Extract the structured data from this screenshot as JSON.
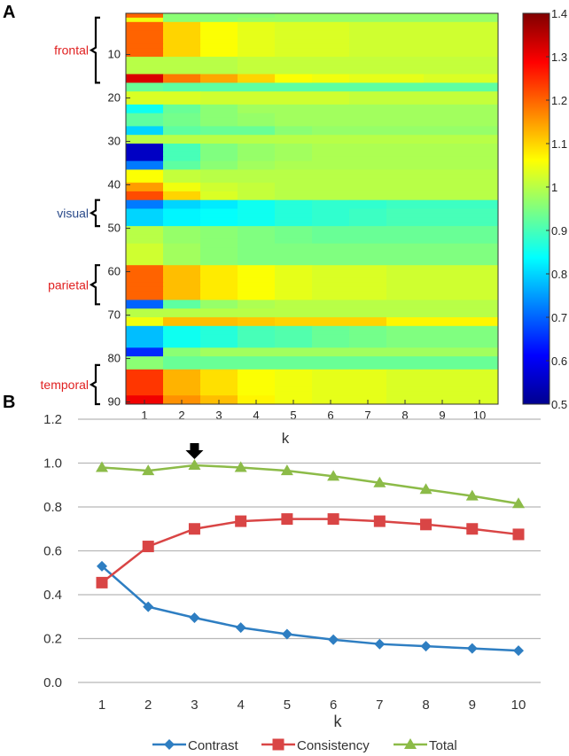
{
  "panel_labels": {
    "a": "A",
    "b": "B"
  },
  "chart_data": [
    {
      "type": "heatmap",
      "panel": "A",
      "xlabel": "k",
      "x_ticks": [
        "1",
        "2",
        "3",
        "4",
        "5",
        "6",
        "7",
        "8",
        "9",
        "10"
      ],
      "y_ticks": [
        "10",
        "20",
        "30",
        "40",
        "50",
        "60",
        "70",
        "80",
        "90"
      ],
      "rows": 90,
      "colorbar": {
        "min": 0.5,
        "max": 1.4,
        "colormap": "jet",
        "ticks": [
          "1.4",
          "1.3",
          "1.2",
          "1.1",
          "1",
          "0.9",
          "0.8",
          "0.7",
          "0.6",
          "0.5"
        ]
      },
      "regions": [
        {
          "label": "frontal",
          "color": "#e02020",
          "rows": [
            2,
            16
          ]
        },
        {
          "label": "visual",
          "color": "#2a4a8a",
          "rows": [
            44,
            49
          ]
        },
        {
          "label": "parietal",
          "color": "#e02020",
          "rows": [
            59,
            67
          ]
        },
        {
          "label": "temporal",
          "color": "#e02020",
          "rows": [
            82,
            90
          ]
        }
      ],
      "bands": [
        {
          "rows": [
            1,
            1
          ],
          "values": [
            1.2,
            0.96,
            0.96,
            0.96,
            0.97,
            0.97,
            0.97,
            0.97,
            0.97,
            0.97
          ]
        },
        {
          "rows": [
            2,
            2
          ],
          "values": [
            1.05,
            0.96,
            0.96,
            0.97,
            0.97,
            0.97,
            0.97,
            0.97,
            0.97,
            0.97
          ]
        },
        {
          "rows": [
            3,
            10
          ],
          "values": [
            1.2,
            1.1,
            1.06,
            1.04,
            1.03,
            1.03,
            1.02,
            1.02,
            1.02,
            1.02
          ]
        },
        {
          "rows": [
            11,
            14
          ],
          "values": [
            1.0,
            1.0,
            1.0,
            1.01,
            1.01,
            1.01,
            1.01,
            1.01,
            1.01,
            1.01
          ]
        },
        {
          "rows": [
            15,
            16
          ],
          "values": [
            1.32,
            1.18,
            1.14,
            1.1,
            1.06,
            1.05,
            1.04,
            1.04,
            1.03,
            1.03
          ]
        },
        {
          "rows": [
            17,
            18
          ],
          "values": [
            0.93,
            0.92,
            0.92,
            0.92,
            0.92,
            0.92,
            0.92,
            0.92,
            0.92,
            0.92
          ]
        },
        {
          "rows": [
            19,
            21
          ],
          "values": [
            1.03,
            1.03,
            1.02,
            1.02,
            1.02,
            1.02,
            1.01,
            1.01,
            1.01,
            1.01
          ]
        },
        {
          "rows": [
            22,
            23
          ],
          "values": [
            0.85,
            0.93,
            0.96,
            0.98,
            0.98,
            0.98,
            0.98,
            0.98,
            0.98,
            0.98
          ]
        },
        {
          "rows": [
            24,
            26
          ],
          "values": [
            0.92,
            0.94,
            0.96,
            0.97,
            0.98,
            0.98,
            0.98,
            0.98,
            0.98,
            0.98
          ]
        },
        {
          "rows": [
            27,
            28
          ],
          "values": [
            0.8,
            0.92,
            0.93,
            0.93,
            0.96,
            0.97,
            0.97,
            0.97,
            0.97,
            0.97
          ]
        },
        {
          "rows": [
            29,
            30
          ],
          "values": [
            1.0,
            1.0,
            1.0,
            1.0,
            1.0,
            1.0,
            1.0,
            1.0,
            1.0,
            1.0
          ]
        },
        {
          "rows": [
            31,
            34
          ],
          "values": [
            0.56,
            0.9,
            0.95,
            0.97,
            0.98,
            0.99,
            0.99,
            0.99,
            0.99,
            0.99
          ]
        },
        {
          "rows": [
            35,
            36
          ],
          "values": [
            0.72,
            0.92,
            0.96,
            0.98,
            0.99,
            0.99,
            0.99,
            0.99,
            0.99,
            0.99
          ]
        },
        {
          "rows": [
            37,
            39
          ],
          "values": [
            1.06,
            1.01,
            1.0,
            1.0,
            1.0,
            1.0,
            1.0,
            1.0,
            1.0,
            1.0
          ]
        },
        {
          "rows": [
            40,
            41
          ],
          "values": [
            1.15,
            1.05,
            1.02,
            1.01,
            1.0,
            1.0,
            1.0,
            1.0,
            1.0,
            1.0
          ]
        },
        {
          "rows": [
            42,
            43
          ],
          "values": [
            1.22,
            1.1,
            1.03,
            1.01,
            1.0,
            1.0,
            1.0,
            1.0,
            1.0,
            1.0
          ]
        },
        {
          "rows": [
            44,
            45
          ],
          "values": [
            0.72,
            0.8,
            0.82,
            0.85,
            0.87,
            0.88,
            0.88,
            0.89,
            0.89,
            0.89
          ]
        },
        {
          "rows": [
            46,
            49
          ],
          "values": [
            0.8,
            0.83,
            0.84,
            0.85,
            0.87,
            0.88,
            0.89,
            0.9,
            0.9,
            0.9
          ]
        },
        {
          "rows": [
            50,
            53
          ],
          "values": [
            1.0,
            0.97,
            0.96,
            0.95,
            0.94,
            0.93,
            0.93,
            0.93,
            0.93,
            0.93
          ]
        },
        {
          "rows": [
            54,
            58
          ],
          "values": [
            1.02,
            0.98,
            0.96,
            0.95,
            0.95,
            0.95,
            0.95,
            0.95,
            0.95,
            0.95
          ]
        },
        {
          "rows": [
            59,
            66
          ],
          "values": [
            1.2,
            1.12,
            1.08,
            1.06,
            1.04,
            1.03,
            1.03,
            1.02,
            1.02,
            1.02
          ]
        },
        {
          "rows": [
            67,
            68
          ],
          "values": [
            0.7,
            0.92,
            0.97,
            0.99,
            1.0,
            1.0,
            1.0,
            1.0,
            1.0,
            1.0
          ]
        },
        {
          "rows": [
            69,
            70
          ],
          "values": [
            1.0,
            1.0,
            1.0,
            1.0,
            1.0,
            1.0,
            1.0,
            1.0,
            1.0,
            1.0
          ]
        },
        {
          "rows": [
            71,
            72
          ],
          "values": [
            1.05,
            1.12,
            1.12,
            1.11,
            1.1,
            1.1,
            1.1,
            1.07,
            1.07,
            1.07
          ]
        },
        {
          "rows": [
            73,
            77
          ],
          "values": [
            0.78,
            0.85,
            0.87,
            0.9,
            0.91,
            0.93,
            0.94,
            0.95,
            0.95,
            0.95
          ]
        },
        {
          "rows": [
            78,
            79
          ],
          "values": [
            0.65,
            0.96,
            0.98,
            0.98,
            0.98,
            0.98,
            0.98,
            0.98,
            0.98,
            0.98
          ]
        },
        {
          "rows": [
            80,
            82
          ],
          "values": [
            0.96,
            0.93,
            0.93,
            0.93,
            0.93,
            0.93,
            0.93,
            0.93,
            0.93,
            0.93
          ]
        },
        {
          "rows": [
            83,
            88
          ],
          "values": [
            1.24,
            1.13,
            1.09,
            1.06,
            1.05,
            1.04,
            1.04,
            1.03,
            1.03,
            1.03
          ]
        },
        {
          "rows": [
            89,
            90
          ],
          "values": [
            1.3,
            1.16,
            1.12,
            1.07,
            1.05,
            1.04,
            1.04,
            1.03,
            1.03,
            1.03
          ]
        }
      ]
    },
    {
      "type": "line",
      "panel": "B",
      "xlabel": "k",
      "ylabel": "",
      "x": [
        1,
        2,
        3,
        4,
        5,
        6,
        7,
        8,
        9,
        10
      ],
      "ylim": [
        0,
        1.2
      ],
      "y_ticks": [
        "0.0",
        "0.2",
        "0.4",
        "0.6",
        "0.8",
        "1.0",
        "1.2"
      ],
      "grid": true,
      "legend_position": "bottom",
      "annotation": {
        "type": "arrow",
        "x": 3,
        "label": ""
      },
      "series": [
        {
          "name": "Contrast",
          "color": "#2e7ec2",
          "marker": "diamond",
          "values": [
            0.53,
            0.345,
            0.295,
            0.25,
            0.22,
            0.195,
            0.175,
            0.165,
            0.155,
            0.145
          ]
        },
        {
          "name": "Consistency",
          "color": "#d94545",
          "marker": "square",
          "values": [
            0.455,
            0.62,
            0.7,
            0.735,
            0.745,
            0.745,
            0.735,
            0.72,
            0.7,
            0.675
          ]
        },
        {
          "name": "Total",
          "color": "#8cbb48",
          "marker": "triangle",
          "values": [
            0.98,
            0.965,
            0.99,
            0.98,
            0.965,
            0.94,
            0.91,
            0.88,
            0.85,
            0.815
          ]
        }
      ]
    }
  ]
}
